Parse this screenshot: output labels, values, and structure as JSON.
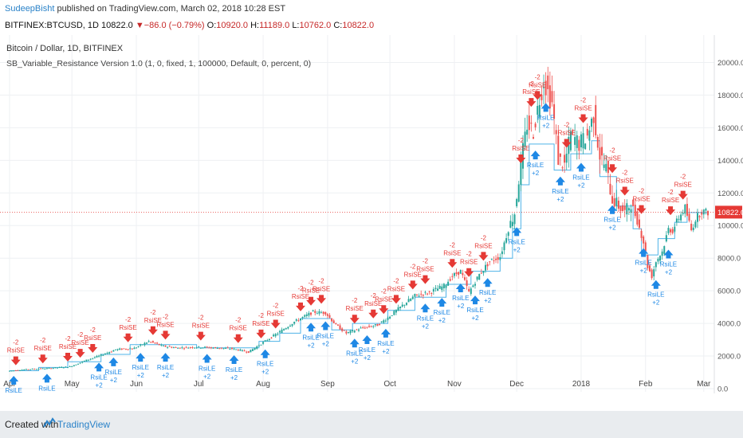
{
  "header": {
    "author": "SudeepBisht",
    "published": " published on TradingView.com, March 02, 2018 10:28 EST",
    "symbol": "BITFINEX:BTCUSD, 1D",
    "last": "10822.0",
    "arrow": "▼",
    "change": "−86.0 (−0.79%)",
    "o_label": "O:",
    "o_value": "10920.0",
    "h_label": "H:",
    "h_value": "11189.0",
    "l_label": "L:",
    "l_value": "10762.0",
    "c_label": "C:",
    "c_value": "10822.0"
  },
  "legend": {
    "title": "Bitcoin / Dollar, 1D, BITFINEX",
    "indicator": "SB_Variable_Resistance Version 1.0 (1, 0, fixed, 1, 100000, Default, 0, percent, 0)"
  },
  "footer": {
    "created": "Created with",
    "brand": "TradingView"
  },
  "colors": {
    "up": "#26a69a",
    "down": "#ef5350",
    "resistance": "#4fb3e8",
    "buy": "#1e88e5",
    "sell": "#e53935",
    "priceline": "#e53935"
  },
  "chart_data": {
    "type": "candlestick",
    "y_ticks": [
      0,
      2000,
      4000,
      6000,
      8000,
      10000,
      12000,
      14000,
      16000,
      18000,
      20000
    ],
    "y_tick_labels": [
      "0.0",
      "2000.0",
      "4000.0",
      "6000.0",
      "8000.0",
      "10000.0",
      "12000.0",
      "14000.0",
      "16000.0",
      "18000.0",
      "20000.0"
    ],
    "ylim": [
      0,
      21000
    ],
    "x_ticks": [
      {
        "label": "Apr",
        "day": 0
      },
      {
        "label": "May",
        "day": 30
      },
      {
        "label": "Jun",
        "day": 61
      },
      {
        "label": "Jul",
        "day": 91
      },
      {
        "label": "Aug",
        "day": 122
      },
      {
        "label": "Sep",
        "day": 153
      },
      {
        "label": "Oct",
        "day": 183
      },
      {
        "label": "Nov",
        "day": 214
      },
      {
        "label": "Dec",
        "day": 244
      },
      {
        "label": "2018",
        "day": 275
      },
      {
        "label": "Feb",
        "day": 306
      },
      {
        "label": "Mar",
        "day": 334
      }
    ],
    "current_price": 10822,
    "current_price_label": "10822.0",
    "price_path": [
      [
        0,
        1080
      ],
      [
        10,
        1190
      ],
      [
        20,
        1250
      ],
      [
        30,
        1350
      ],
      [
        38,
        1750
      ],
      [
        45,
        2050
      ],
      [
        52,
        2400
      ],
      [
        61,
        2480
      ],
      [
        68,
        2900
      ],
      [
        75,
        2600
      ],
      [
        82,
        2500
      ],
      [
        91,
        2550
      ],
      [
        100,
        2500
      ],
      [
        108,
        2450
      ],
      [
        116,
        2250
      ],
      [
        122,
        2750
      ],
      [
        130,
        3400
      ],
      [
        138,
        4100
      ],
      [
        147,
        4700
      ],
      [
        153,
        4650
      ],
      [
        158,
        3900
      ],
      [
        163,
        3400
      ],
      [
        170,
        3700
      ],
      [
        178,
        3900
      ],
      [
        183,
        4350
      ],
      [
        190,
        5100
      ],
      [
        196,
        5700
      ],
      [
        203,
        5900
      ],
      [
        210,
        6300
      ],
      [
        214,
        6900
      ],
      [
        218,
        7200
      ],
      [
        222,
        5900
      ],
      [
        227,
        7000
      ],
      [
        232,
        7800
      ],
      [
        237,
        8100
      ],
      [
        241,
        9800
      ],
      [
        244,
        10800
      ],
      [
        247,
        13800
      ],
      [
        250,
        16200
      ],
      [
        253,
        15800
      ],
      [
        256,
        17800
      ],
      [
        258,
        18900
      ],
      [
        260,
        18200
      ],
      [
        262,
        17500
      ],
      [
        265,
        14100
      ],
      [
        268,
        13700
      ],
      [
        271,
        15600
      ],
      [
        275,
        15000
      ],
      [
        279,
        15500
      ],
      [
        282,
        16800
      ],
      [
        285,
        14300
      ],
      [
        288,
        13500
      ],
      [
        291,
        11600
      ],
      [
        294,
        11200
      ],
      [
        297,
        10800
      ],
      [
        300,
        11400
      ],
      [
        303,
        10300
      ],
      [
        306,
        9000
      ],
      [
        308,
        7500
      ],
      [
        310,
        6900
      ],
      [
        312,
        7800
      ],
      [
        315,
        8400
      ],
      [
        318,
        9800
      ],
      [
        320,
        9700
      ],
      [
        323,
        10500
      ],
      [
        326,
        11100
      ],
      [
        329,
        9700
      ],
      [
        331,
        10400
      ],
      [
        334,
        10900
      ],
      [
        336,
        10822
      ]
    ],
    "resistance_path": [
      [
        0,
        1100
      ],
      [
        14,
        1100
      ],
      [
        14,
        1300
      ],
      [
        28,
        1300
      ],
      [
        28,
        1650
      ],
      [
        44,
        1650
      ],
      [
        44,
        2100
      ],
      [
        58,
        2100
      ],
      [
        58,
        2700
      ],
      [
        90,
        2700
      ],
      [
        90,
        2500
      ],
      [
        120,
        2500
      ],
      [
        120,
        2900
      ],
      [
        130,
        2900
      ],
      [
        130,
        3400
      ],
      [
        140,
        3400
      ],
      [
        140,
        4300
      ],
      [
        155,
        4300
      ],
      [
        155,
        3600
      ],
      [
        165,
        3600
      ],
      [
        165,
        4000
      ],
      [
        182,
        4000
      ],
      [
        182,
        4800
      ],
      [
        195,
        4800
      ],
      [
        195,
        5600
      ],
      [
        210,
        5600
      ],
      [
        210,
        6400
      ],
      [
        222,
        6400
      ],
      [
        222,
        7200
      ],
      [
        236,
        7200
      ],
      [
        236,
        8000
      ],
      [
        242,
        8000
      ],
      [
        242,
        9800
      ],
      [
        246,
        9800
      ],
      [
        246,
        12500
      ],
      [
        250,
        12500
      ],
      [
        250,
        15000
      ],
      [
        262,
        15000
      ],
      [
        262,
        13400
      ],
      [
        270,
        13400
      ],
      [
        270,
        14400
      ],
      [
        280,
        14400
      ],
      [
        280,
        15200
      ],
      [
        284,
        15200
      ],
      [
        284,
        13000
      ],
      [
        292,
        13000
      ],
      [
        292,
        11200
      ],
      [
        300,
        11200
      ],
      [
        300,
        9800
      ],
      [
        304,
        9800
      ],
      [
        304,
        8200
      ],
      [
        312,
        8200
      ],
      [
        312,
        9200
      ],
      [
        320,
        9200
      ],
      [
        320,
        10200
      ],
      [
        326,
        10200
      ],
      [
        326,
        10800
      ],
      [
        336,
        10800
      ]
    ],
    "signals": [
      {
        "day": 3,
        "type": "RsiSE",
        "value": "-2"
      },
      {
        "day": 16,
        "type": "RsiSE",
        "value": "-2"
      },
      {
        "day": 2,
        "type": "RsiLE",
        "value": "+2"
      },
      {
        "day": 18,
        "type": "RsiLE",
        "value": "+2"
      },
      {
        "day": 28,
        "type": "RsiSE",
        "value": "-2"
      },
      {
        "day": 34,
        "type": "RsiSE",
        "value": "-2"
      },
      {
        "day": 40,
        "type": "RsiSE",
        "value": "-2"
      },
      {
        "day": 43,
        "type": "RsiLE",
        "value": "+2"
      },
      {
        "day": 50,
        "type": "RsiLE",
        "value": "+2"
      },
      {
        "day": 57,
        "type": "RsiSE",
        "value": "-2"
      },
      {
        "day": 69,
        "type": "RsiSE",
        "value": "-2"
      },
      {
        "day": 75,
        "type": "RsiSE",
        "value": "-2"
      },
      {
        "day": 63,
        "type": "RsiLE",
        "value": "+2"
      },
      {
        "day": 75,
        "type": "RsiLE",
        "value": "+2"
      },
      {
        "day": 92,
        "type": "RsiSE",
        "value": "-2"
      },
      {
        "day": 95,
        "type": "RsiLE",
        "value": "+2"
      },
      {
        "day": 110,
        "type": "RsiSE",
        "value": "-2"
      },
      {
        "day": 108,
        "type": "RsiLE",
        "value": "+2"
      },
      {
        "day": 121,
        "type": "RsiSE",
        "value": "-2"
      },
      {
        "day": 128,
        "type": "RsiSE",
        "value": "-2"
      },
      {
        "day": 123,
        "type": "RsiLE",
        "value": "+2"
      },
      {
        "day": 140,
        "type": "RsiSE",
        "value": "-2"
      },
      {
        "day": 145,
        "type": "RsiSE",
        "value": "-2"
      },
      {
        "day": 150,
        "type": "RsiSE",
        "value": "-2"
      },
      {
        "day": 145,
        "type": "RsiLE",
        "value": "+2"
      },
      {
        "day": 152,
        "type": "RsiLE",
        "value": "+2"
      },
      {
        "day": 166,
        "type": "RsiSE",
        "value": "-2"
      },
      {
        "day": 175,
        "type": "RsiSE",
        "value": "-2"
      },
      {
        "day": 180,
        "type": "RsiSE",
        "value": "-2"
      },
      {
        "day": 186,
        "type": "RsiSE",
        "value": "-2"
      },
      {
        "day": 166,
        "type": "RsiLE",
        "value": "+2"
      },
      {
        "day": 172,
        "type": "RsiLE",
        "value": "+2"
      },
      {
        "day": 181,
        "type": "RsiLE",
        "value": "+2"
      },
      {
        "day": 194,
        "type": "RsiSE",
        "value": "-2"
      },
      {
        "day": 200,
        "type": "RsiSE",
        "value": "-2"
      },
      {
        "day": 200,
        "type": "RsiLE",
        "value": "+2"
      },
      {
        "day": 208,
        "type": "RsiLE",
        "value": "+2"
      },
      {
        "day": 213,
        "type": "RsiSE",
        "value": "-2"
      },
      {
        "day": 221,
        "type": "RsiSE",
        "value": "-2"
      },
      {
        "day": 228,
        "type": "RsiSE",
        "value": "-2"
      },
      {
        "day": 217,
        "type": "RsiLE",
        "value": "+2"
      },
      {
        "day": 224,
        "type": "RsiLE",
        "value": "+2"
      },
      {
        "day": 230,
        "type": "RsiLE",
        "value": "+2"
      },
      {
        "day": 246,
        "type": "RsiSE",
        "value": "-2"
      },
      {
        "day": 251,
        "type": "RsiSE",
        "value": "-2"
      },
      {
        "day": 254,
        "type": "RsiSE",
        "value": "-2"
      },
      {
        "day": 244,
        "type": "RsiLE",
        "value": "+2"
      },
      {
        "day": 253,
        "type": "RsiLE",
        "value": "+2"
      },
      {
        "day": 258,
        "type": "RsiLE",
        "value": "+2"
      },
      {
        "day": 268,
        "type": "RsiSE",
        "value": "-2"
      },
      {
        "day": 276,
        "type": "RsiSE",
        "value": "-2"
      },
      {
        "day": 265,
        "type": "RsiLE",
        "value": "+2"
      },
      {
        "day": 275,
        "type": "RsiLE",
        "value": "+2"
      },
      {
        "day": 290,
        "type": "RsiSE",
        "value": "-2"
      },
      {
        "day": 296,
        "type": "RsiSE",
        "value": "-2"
      },
      {
        "day": 290,
        "type": "RsiLE",
        "value": "+2"
      },
      {
        "day": 304,
        "type": "RsiSE",
        "value": "-2"
      },
      {
        "day": 318,
        "type": "RsiSE",
        "value": "-2"
      },
      {
        "day": 324,
        "type": "RsiSE",
        "value": "-2"
      },
      {
        "day": 305,
        "type": "RsiLE",
        "value": "+2"
      },
      {
        "day": 311,
        "type": "RsiLE",
        "value": "+2"
      },
      {
        "day": 317,
        "type": "RsiLE",
        "value": "+2"
      }
    ]
  }
}
